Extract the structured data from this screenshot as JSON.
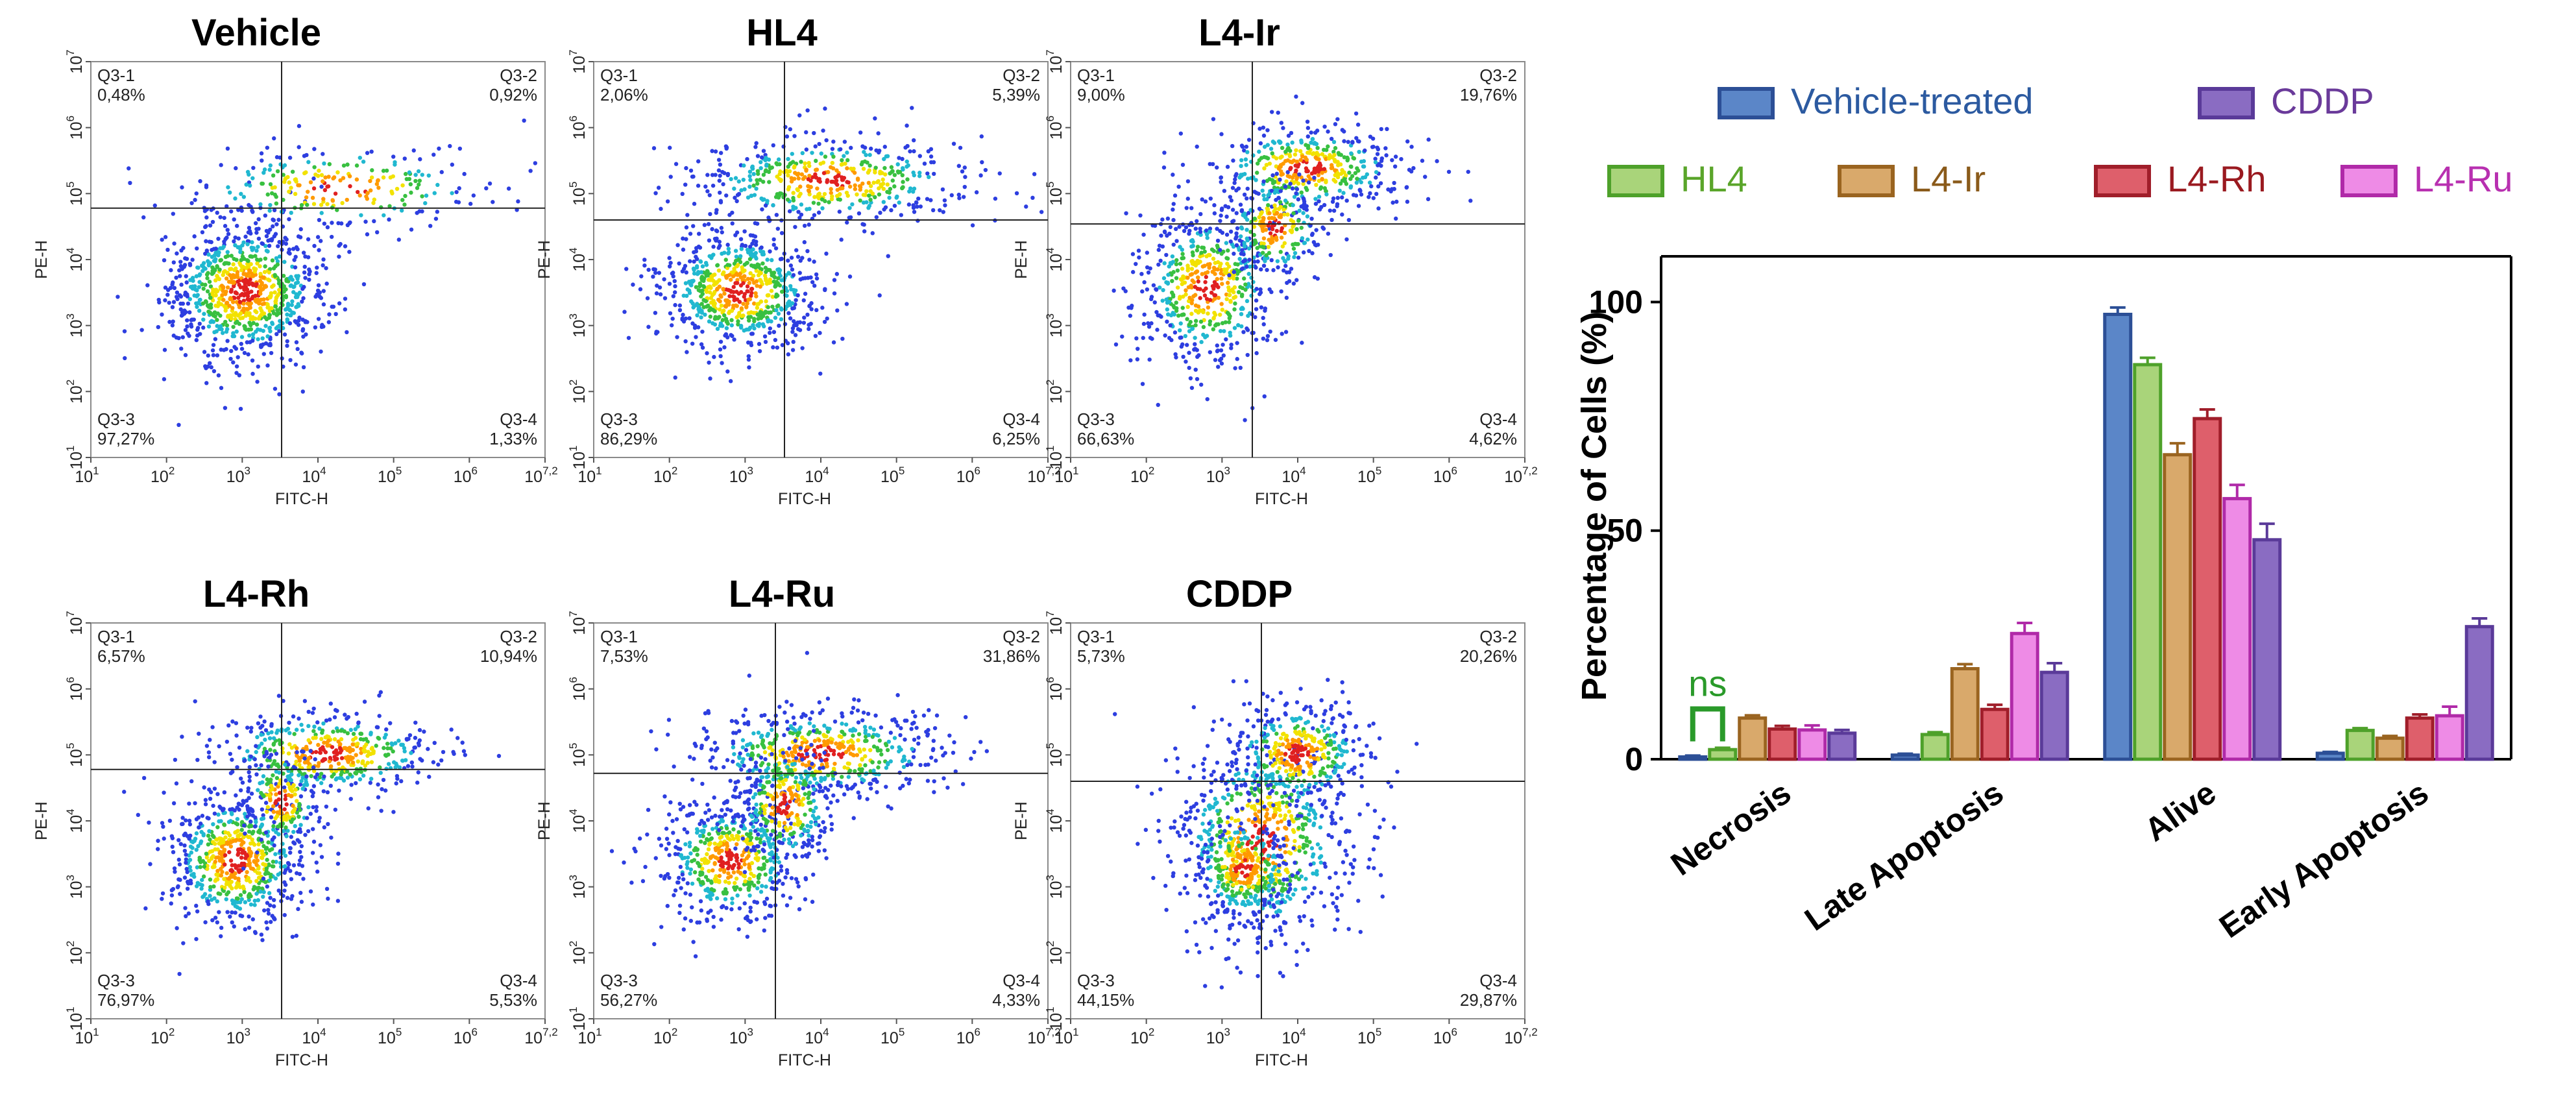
{
  "flow_panels": [
    {
      "title": "Vehicle",
      "quadrants": {
        "q1": {
          "label": "Q3-1",
          "value": "0,48%"
        },
        "q2": {
          "label": "Q3-2",
          "value": "0,92%"
        },
        "q3": {
          "label": "Q3-3",
          "value": "97,27%"
        },
        "q4": {
          "label": "Q3-4",
          "value": "1,33%"
        }
      }
    },
    {
      "title": "HL4",
      "quadrants": {
        "q1": {
          "label": "Q3-1",
          "value": "2,06%"
        },
        "q2": {
          "label": "Q3-2",
          "value": "5,39%"
        },
        "q3": {
          "label": "Q3-3",
          "value": "86,29%"
        },
        "q4": {
          "label": "Q3-4",
          "value": "6,25%"
        }
      }
    },
    {
      "title": "L4-Ir",
      "quadrants": {
        "q1": {
          "label": "Q3-1",
          "value": "9,00%"
        },
        "q2": {
          "label": "Q3-2",
          "value": "19,76%"
        },
        "q3": {
          "label": "Q3-3",
          "value": "66,63%"
        },
        "q4": {
          "label": "Q3-4",
          "value": "4,62%"
        }
      }
    },
    {
      "title": "L4-Rh",
      "quadrants": {
        "q1": {
          "label": "Q3-1",
          "value": "6,57%"
        },
        "q2": {
          "label": "Q3-2",
          "value": "10,94%"
        },
        "q3": {
          "label": "Q3-3",
          "value": "76,97%"
        },
        "q4": {
          "label": "Q3-4",
          "value": "5,53%"
        }
      }
    },
    {
      "title": "L4-Ru",
      "quadrants": {
        "q1": {
          "label": "Q3-1",
          "value": "7,53%"
        },
        "q2": {
          "label": "Q3-2",
          "value": "31,86%"
        },
        "q3": {
          "label": "Q3-3",
          "value": "56,27%"
        },
        "q4": {
          "label": "Q3-4",
          "value": "4,33%"
        }
      }
    },
    {
      "title": "CDDP",
      "quadrants": {
        "q1": {
          "label": "Q3-1",
          "value": "5,73%"
        },
        "q2": {
          "label": "Q3-2",
          "value": "20,26%"
        },
        "q3": {
          "label": "Q3-3",
          "value": "44,15%"
        },
        "q4": {
          "label": "Q3-4",
          "value": "29,87%"
        }
      }
    }
  ],
  "flow_axes": {
    "xlabel": "FITC-H",
    "ylabel": "PE-H",
    "tick_base": "10",
    "tick_exponents": [
      "1",
      "2",
      "3",
      "4",
      "5",
      "6",
      "7,2"
    ],
    "y_tick_exponents": [
      "1",
      "2",
      "3",
      "4",
      "5",
      "6",
      "7"
    ]
  },
  "chart_data": [
    {
      "type": "scatter",
      "description_of_panels": "Six flow cytometry density dot plots (PE-H vs FITC-H, log scale) with quadrant gates",
      "x_scale": "log",
      "y_scale": "log",
      "xlabel": "FITC-H",
      "ylabel": "PE-H",
      "xlim": [
        10,
        15849
      ],
      "ylim": [
        10,
        10000000
      ],
      "panels": [
        "Vehicle",
        "HL4",
        "L4-Ir",
        "L4-Rh",
        "L4-Ru",
        "CDDP"
      ]
    },
    {
      "type": "bar",
      "title": "",
      "xlabel": "",
      "ylabel": "Percentage of Cells (%)",
      "ylim": [
        0,
        110
      ],
      "yticks": [
        "0",
        "50",
        "100"
      ],
      "categories": [
        "Necrosis",
        "Late Apoptosis",
        "Alive",
        "Early Apoptosis"
      ],
      "series": [
        {
          "name": "Vehicle-treated",
          "values": [
            0.5,
            0.9,
            97.3,
            1.3
          ],
          "error": [
            0.3,
            0.3,
            1.5,
            0.3
          ]
        },
        {
          "name": "HL4",
          "values": [
            2.1,
            5.4,
            86.3,
            6.3
          ],
          "error": [
            0.4,
            0.5,
            1.5,
            0.5
          ]
        },
        {
          "name": "L4-Ir",
          "values": [
            9.0,
            19.8,
            66.6,
            4.6
          ],
          "error": [
            0.6,
            1.0,
            2.5,
            0.5
          ]
        },
        {
          "name": "L4-Rh",
          "values": [
            6.6,
            10.9,
            74.5,
            9.0
          ],
          "error": [
            0.7,
            1.0,
            2.0,
            0.8
          ]
        },
        {
          "name": "L4-Ru",
          "values": [
            6.4,
            27.5,
            57.0,
            9.5
          ],
          "error": [
            1.0,
            2.3,
            3.0,
            2.0
          ]
        },
        {
          "name": "CDDP",
          "values": [
            5.7,
            19.0,
            48.0,
            29.0
          ],
          "error": [
            0.7,
            2.0,
            3.5,
            1.8
          ]
        }
      ],
      "annotation": {
        "text": "ns",
        "between": [
          "Vehicle-treated",
          "HL4"
        ],
        "category": "Necrosis"
      },
      "legend_placement": "top",
      "colors": {
        "Vehicle-treated": "#5b86c8",
        "HL4": "#a9d47a",
        "L4-Ir": "#d9a96b",
        "L4-Rh": "#de5f6b",
        "L4-Ru": "#ee8be6",
        "CDDP": "#8a6cc2"
      },
      "edge_colors": {
        "Vehicle-treated": "#2c4f96",
        "HL4": "#4ea12a",
        "L4-Ir": "#9a6420",
        "L4-Rh": "#a01e2a",
        "L4-Ru": "#b02aa8",
        "CDDP": "#5a3a99"
      },
      "legend_text_colors": {
        "Vehicle-treated": "#2c5aa0",
        "HL4": "#5aa52a",
        "L4-Ir": "#8a5a1a",
        "L4-Rh": "#9a1a20",
        "L4-Ru": "#b830b0",
        "CDDP": "#6a3a9a"
      },
      "annotation_color": "#2a9a2a"
    }
  ]
}
